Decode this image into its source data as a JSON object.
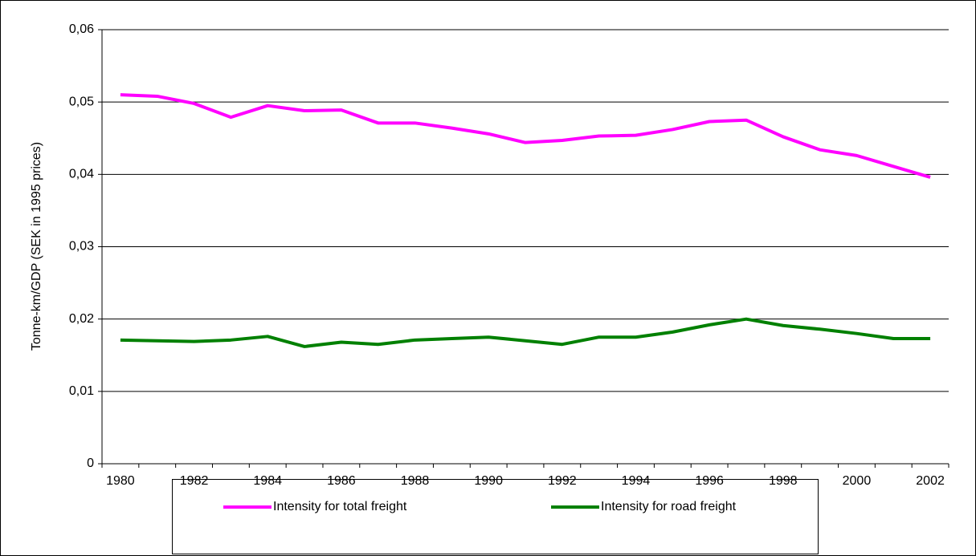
{
  "chart_data": {
    "type": "line",
    "y_label": "Tonne-km/GDP (SEK in 1995 prices)",
    "categories": [
      "1980",
      null,
      "1982",
      null,
      "1984",
      null,
      "1986",
      null,
      "1988",
      null,
      "1990",
      null,
      "1992",
      null,
      "1994",
      null,
      "1996",
      null,
      "1998",
      null,
      "2000",
      null,
      "2002"
    ],
    "series": [
      {
        "name": "Intensity for total freight",
        "color": "#ff00ff",
        "values": [
          0.051,
          0.0508,
          0.0498,
          0.0479,
          0.0495,
          0.0488,
          0.0489,
          0.0471,
          0.0471,
          0.0464,
          0.0456,
          0.0444,
          0.0447,
          0.0453,
          0.0454,
          0.0462,
          0.0473,
          0.0475,
          0.0452,
          0.0434,
          0.0426,
          0.0411,
          0.0396
        ]
      },
      {
        "name": "Intensity for road freight",
        "color": "#008000",
        "values": [
          0.0171,
          0.017,
          0.0169,
          0.0171,
          0.0176,
          0.0162,
          0.0168,
          0.0165,
          0.0171,
          0.0173,
          0.0175,
          0.017,
          0.0165,
          0.0175,
          0.0175,
          0.0182,
          0.0192,
          0.02,
          0.0191,
          0.0186,
          0.018,
          0.0173,
          0.0173
        ]
      }
    ],
    "ylim": [
      0,
      0.06
    ],
    "yticks": [
      0,
      {
        "value": 0.01,
        "label": "0,01"
      },
      {
        "value": 0.02,
        "label": "0,02"
      },
      {
        "value": 0.03,
        "label": "0,03"
      },
      {
        "value": 0.04,
        "label": "0,04"
      },
      {
        "value": 0.05,
        "label": "0,05"
      },
      {
        "value": 0.06,
        "label": "0,06"
      }
    ],
    "grid": true,
    "legend": "bottom"
  }
}
